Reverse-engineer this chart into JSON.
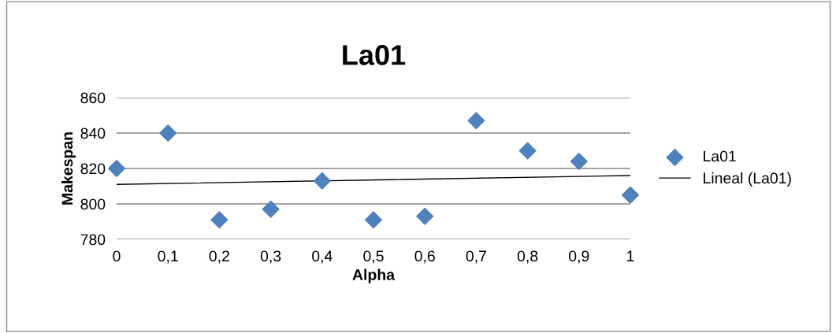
{
  "chart_data": {
    "type": "scatter",
    "title": "La01",
    "xlabel": "Alpha",
    "ylabel": "Makespan",
    "x": [
      0,
      0.1,
      0.2,
      0.3,
      0.4,
      0.5,
      0.6,
      0.7,
      0.8,
      0.9,
      1
    ],
    "series": [
      {
        "name": "La01",
        "color": "#4f81bd",
        "marker": "diamond",
        "values": [
          820,
          840,
          791,
          797,
          813,
          791,
          793,
          847,
          830,
          824,
          805
        ]
      },
      {
        "name": "Lineal (La01)",
        "type": "line",
        "color": "#000000",
        "marker": "none",
        "line_style": "solid",
        "x": [
          0,
          1
        ],
        "values": [
          811,
          816
        ]
      }
    ],
    "xlim": [
      0,
      1
    ],
    "xticks": [
      0,
      {
        "value": 0.1,
        "label": "0,1"
      },
      {
        "value": 0.2,
        "label": "0,2"
      },
      {
        "value": 0.3,
        "label": "0,3"
      },
      {
        "value": 0.4,
        "label": "0,4"
      },
      {
        "value": 0.5,
        "label": "0,5"
      },
      {
        "value": 0.6,
        "label": "0,6"
      },
      {
        "value": 0.7,
        "label": "0,7"
      },
      {
        "value": 0.8,
        "label": "0,8"
      },
      {
        "value": 0.9,
        "label": "0,9"
      },
      1
    ],
    "ylim": [
      780,
      860
    ],
    "yticks": [
      780,
      800,
      820,
      840,
      860
    ],
    "grid": "y",
    "legend": "right"
  }
}
